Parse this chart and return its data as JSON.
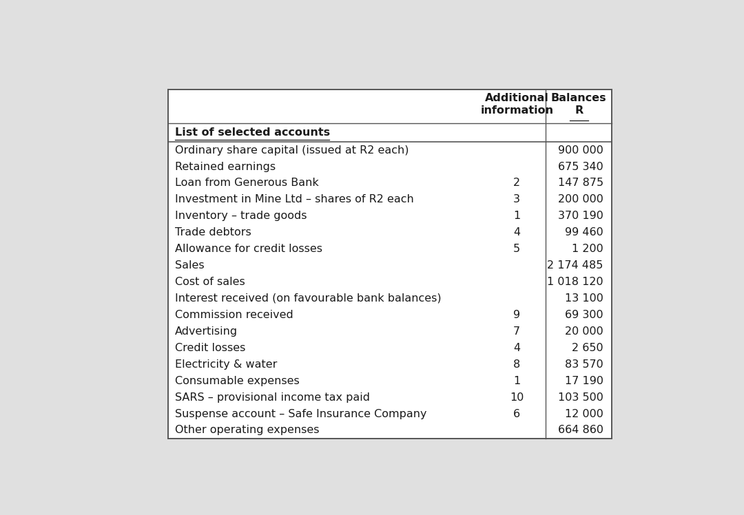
{
  "bg_color": "#e0e0e0",
  "table_bg": "#ffffff",
  "header1": "Additional\ninformation",
  "header2": "Balances\nR",
  "col_header": "List of selected accounts",
  "rows": [
    {
      "account": "Ordinary share capital (issued at R2 each)",
      "info": "",
      "balance": "900 000"
    },
    {
      "account": "Retained earnings",
      "info": "",
      "balance": "675 340"
    },
    {
      "account": "Loan from Generous Bank",
      "info": "2",
      "balance": "147 875"
    },
    {
      "account": "Investment in Mine Ltd – shares of R2 each",
      "info": "3",
      "balance": "200 000"
    },
    {
      "account": "Inventory – trade goods",
      "info": "1",
      "balance": "370 190"
    },
    {
      "account": "Trade debtors",
      "info": "4",
      "balance": "99 460"
    },
    {
      "account": "Allowance for credit losses",
      "info": "5",
      "balance": "1 200"
    },
    {
      "account": "Sales",
      "info": "",
      "balance": "2 174 485"
    },
    {
      "account": "Cost of sales",
      "info": "",
      "balance": "1 018 120"
    },
    {
      "account": "Interest received (on favourable bank balances)",
      "info": "",
      "balance": "13 100"
    },
    {
      "account": "Commission received",
      "info": "9",
      "balance": "69 300"
    },
    {
      "account": "Advertising",
      "info": "7",
      "balance": "20 000"
    },
    {
      "account": "Credit losses",
      "info": "4",
      "balance": "2 650"
    },
    {
      "account": "Electricity & water",
      "info": "8",
      "balance": "83 570"
    },
    {
      "account": "Consumable expenses",
      "info": "1",
      "balance": "17 190"
    },
    {
      "account": "SARS – provisional income tax paid",
      "info": "10",
      "balance": "103 500"
    },
    {
      "account": "Suspense account – Safe Insurance Company",
      "info": "6",
      "balance": "12 000"
    },
    {
      "account": "Other operating expenses",
      "info": "",
      "balance": "664 860"
    }
  ],
  "font_size": 11.5,
  "header_font_size": 11.5,
  "col_header_font_size": 11.5,
  "text_color": "#1a1a1a",
  "border_color": "#555555"
}
